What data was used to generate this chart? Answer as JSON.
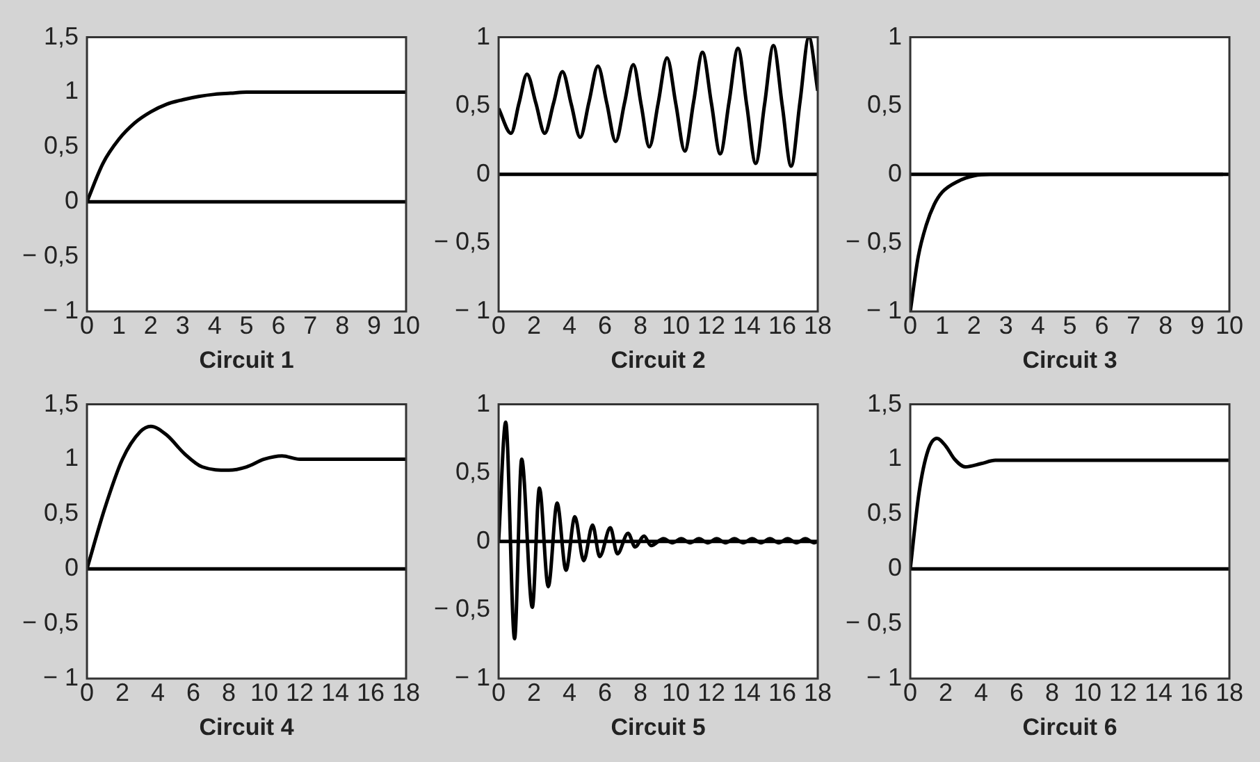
{
  "chart_data": [
    {
      "type": "line",
      "xlabel": "Circuit 1",
      "xlim": [
        0,
        10
      ],
      "xticks": [
        0,
        1,
        2,
        3,
        4,
        5,
        6,
        7,
        8,
        9,
        10
      ],
      "ylim": [
        -1,
        1.5
      ],
      "yticks": [
        {
          "value": -1,
          "label": "− 1"
        },
        {
          "value": -0.5,
          "label": "− 0,5"
        },
        {
          "value": 0,
          "label": "0"
        },
        {
          "value": 0.5,
          "label": "0,5"
        },
        {
          "value": 1,
          "label": "1"
        },
        {
          "value": 1.5,
          "label": "1,5"
        }
      ],
      "ref_lines": [
        {
          "axis": "y",
          "value": 0,
          "color": "#000000"
        }
      ],
      "color": "#000000",
      "x": [
        0,
        0.5,
        1,
        1.5,
        2,
        2.5,
        3,
        3.5,
        4,
        4.5,
        5,
        5.5,
        10
      ],
      "values": [
        0,
        0.35,
        0.57,
        0.72,
        0.82,
        0.89,
        0.93,
        0.96,
        0.98,
        0.99,
        1,
        1,
        1
      ]
    },
    {
      "type": "line",
      "xlabel": "Circuit 2",
      "xlim": [
        0,
        18
      ],
      "xticks": [
        0,
        2,
        4,
        6,
        8,
        10,
        12,
        14,
        16,
        18
      ],
      "ylim": [
        -1,
        1
      ],
      "yticks": [
        {
          "value": -1,
          "label": "− 1"
        },
        {
          "value": -0.5,
          "label": "− 0,5"
        },
        {
          "value": 0,
          "label": "0"
        },
        {
          "value": 0.5,
          "label": "0,5"
        },
        {
          "value": 1,
          "label": "1"
        }
      ],
      "ref_lines": [
        {
          "axis": "y",
          "value": 0,
          "color": "#000000"
        }
      ],
      "color": "#000000",
      "x": [
        0,
        0.7,
        1.15,
        1.6,
        2.1,
        2.6,
        3.1,
        3.6,
        4.1,
        4.6,
        5.1,
        5.6,
        6.1,
        6.6,
        7.1,
        7.6,
        8.05,
        8.5,
        9,
        9.5,
        10,
        10.5,
        11,
        11.5,
        12,
        12.5,
        13,
        13.5,
        14,
        14.5,
        15,
        15.5,
        16,
        16.5,
        17,
        17.5,
        18
      ],
      "values": [
        0.48,
        0.3,
        0.52,
        0.73,
        0.52,
        0.3,
        0.52,
        0.75,
        0.51,
        0.27,
        0.53,
        0.79,
        0.52,
        0.24,
        0.52,
        0.8,
        0.5,
        0.2,
        0.52,
        0.85,
        0.51,
        0.17,
        0.53,
        0.89,
        0.52,
        0.15,
        0.53,
        0.92,
        0.5,
        0.08,
        0.51,
        0.94,
        0.5,
        0.06,
        0.53,
        1,
        0.61
      ]
    },
    {
      "type": "line",
      "xlabel": "Circuit 3",
      "xlim": [
        0,
        10
      ],
      "xticks": [
        0,
        1,
        2,
        3,
        4,
        5,
        6,
        7,
        8,
        9,
        10
      ],
      "ylim": [
        -1,
        1
      ],
      "yticks": [
        {
          "value": -1,
          "label": "− 1"
        },
        {
          "value": -0.5,
          "label": "− 0,5"
        },
        {
          "value": 0,
          "label": "0"
        },
        {
          "value": 0.5,
          "label": "0,5"
        },
        {
          "value": 1,
          "label": "1"
        }
      ],
      "ref_lines": [
        {
          "axis": "y",
          "value": 0,
          "color": "#000000"
        }
      ],
      "color": "#000000",
      "x": [
        0,
        0.25,
        0.5,
        0.75,
        1,
        1.5,
        2,
        2.5,
        9.8
      ],
      "values": [
        -1,
        -0.6,
        -0.37,
        -0.22,
        -0.13,
        -0.05,
        -0.01,
        0,
        0
      ]
    },
    {
      "type": "line",
      "xlabel": "Circuit 4",
      "xlim": [
        0,
        18
      ],
      "xticks": [
        0,
        2,
        4,
        6,
        8,
        10,
        12,
        14,
        16,
        18
      ],
      "ylim": [
        -1,
        1.5
      ],
      "yticks": [
        {
          "value": -1,
          "label": "− 1"
        },
        {
          "value": -0.5,
          "label": "− 0,5"
        },
        {
          "value": 0,
          "label": "0"
        },
        {
          "value": 0.5,
          "label": "0,5"
        },
        {
          "value": 1,
          "label": "1"
        },
        {
          "value": 1.5,
          "label": "1,5"
        }
      ],
      "ref_lines": [
        {
          "axis": "y",
          "value": 0,
          "color": "#000000"
        }
      ],
      "color": "#000000",
      "x": [
        0,
        1,
        2,
        3,
        3.6,
        4.5,
        5.5,
        6.5,
        8,
        9,
        10,
        11,
        12,
        13,
        18
      ],
      "values": [
        0,
        0.55,
        1,
        1.25,
        1.3,
        1.22,
        1.05,
        0.93,
        0.9,
        0.93,
        1,
        1.03,
        1,
        1,
        1
      ]
    },
    {
      "type": "line",
      "xlabel": "Circuit 5",
      "xlim": [
        0,
        18
      ],
      "xticks": [
        0,
        2,
        4,
        6,
        8,
        10,
        12,
        14,
        16,
        18
      ],
      "ylim": [
        -1,
        1
      ],
      "yticks": [
        {
          "value": -1,
          "label": "− 1"
        },
        {
          "value": -0.5,
          "label": "− 0,5"
        },
        {
          "value": 0,
          "label": "0"
        },
        {
          "value": 0.5,
          "label": "0,5"
        },
        {
          "value": 1,
          "label": "1"
        }
      ],
      "ref_lines": [
        {
          "axis": "y",
          "value": 0,
          "color": "#000000"
        }
      ],
      "color": "#000000",
      "x": [
        0,
        0.4,
        0.9,
        1.3,
        1.9,
        2.3,
        2.8,
        3.3,
        3.8,
        4.3,
        4.8,
        5.3,
        5.7,
        6.3,
        6.7,
        7.3,
        7.7,
        8.2,
        8.6,
        9.3,
        9.8,
        10.3,
        10.8,
        11.3,
        11.8,
        12.3,
        12.8,
        13.3,
        13.8,
        14.3,
        14.8,
        15.3,
        15.8,
        16.3,
        16.8,
        17.3,
        17.8,
        18
      ],
      "values": [
        0,
        0.87,
        -0.71,
        0.6,
        -0.48,
        0.39,
        -0.33,
        0.28,
        -0.21,
        0.18,
        -0.14,
        0.12,
        -0.11,
        0.1,
        -0.09,
        0.06,
        -0.04,
        0.04,
        -0.03,
        0.02,
        -0.01,
        0.02,
        -0.01,
        0.02,
        -0.01,
        0.02,
        -0.01,
        0.02,
        -0.01,
        0.02,
        -0.01,
        0.02,
        -0.01,
        0.02,
        -0.01,
        0.02,
        -0.01,
        0
      ]
    },
    {
      "type": "line",
      "xlabel": "Circuit 6",
      "xlim": [
        0,
        18
      ],
      "xticks": [
        0,
        2,
        4,
        6,
        8,
        10,
        12,
        14,
        16,
        18
      ],
      "ylim": [
        -1,
        1.5
      ],
      "yticks": [
        {
          "value": -1,
          "label": "− 1"
        },
        {
          "value": -0.5,
          "label": "− 0,5"
        },
        {
          "value": 0,
          "label": "0"
        },
        {
          "value": 0.5,
          "label": "0,5"
        },
        {
          "value": 1,
          "label": "1"
        },
        {
          "value": 1.5,
          "label": "1,5"
        }
      ],
      "ref_lines": [
        {
          "axis": "y",
          "value": 0,
          "color": "#000000"
        }
      ],
      "color": "#000000",
      "x": [
        0,
        0.5,
        1,
        1.5,
        2,
        2.5,
        3.1,
        4,
        4.8,
        18
      ],
      "values": [
        0,
        0.7,
        1.08,
        1.19,
        1.12,
        1,
        0.93,
        0.96,
        0.99,
        0.99
      ]
    }
  ]
}
